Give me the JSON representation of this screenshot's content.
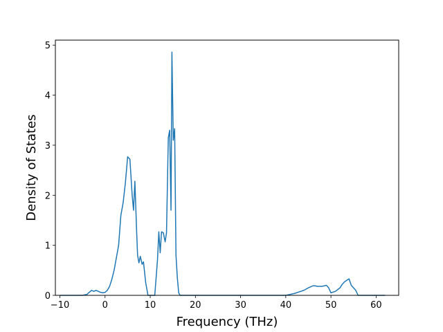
{
  "chart_data": {
    "type": "line",
    "title": "",
    "xlabel": "Frequency (THz)",
    "ylabel": "Density of States",
    "xlim": [
      -11,
      65
    ],
    "ylim": [
      0,
      5.1
    ],
    "xticks": [
      -10,
      0,
      10,
      20,
      30,
      40,
      50,
      60
    ],
    "yticks": [
      0,
      1,
      2,
      3,
      4,
      5
    ],
    "grid": false,
    "legend": "none",
    "line_color": "#1f77b4",
    "series": [
      {
        "x": [
          -10,
          -5,
          -4,
          -3,
          -2.5,
          -2,
          -1.5,
          -1,
          -0.5,
          0,
          0.5,
          1,
          1.5,
          2,
          2.5,
          3,
          3.5,
          4,
          4.5,
          5,
          5.5,
          6,
          6.3,
          6.6,
          7,
          7.2,
          7.5,
          7.8,
          8.2,
          8.5,
          9,
          9.5,
          10,
          10.5,
          11,
          11.3,
          11.6,
          11.9,
          12.2,
          12.5,
          12.9,
          13.3,
          13.6,
          14,
          14.3,
          14.6,
          14.8,
          15.1,
          15.4,
          15.7,
          16,
          16.3,
          16.6,
          17,
          20,
          30,
          40,
          41,
          42,
          43,
          44,
          45,
          45.5,
          46,
          46.5,
          47,
          47.5,
          48,
          48.5,
          49,
          49.5,
          50,
          51,
          52,
          52.5,
          53,
          53.5,
          54,
          54.5,
          55,
          55.5,
          56,
          60,
          62
        ],
        "y": [
          0,
          0,
          0.02,
          0.1,
          0.08,
          0.1,
          0.08,
          0.06,
          0.05,
          0.06,
          0.1,
          0.18,
          0.32,
          0.5,
          0.75,
          1.0,
          1.6,
          1.85,
          2.25,
          2.77,
          2.72,
          2.0,
          1.7,
          2.28,
          1.25,
          0.8,
          0.65,
          0.78,
          0.62,
          0.67,
          0.25,
          0,
          0,
          0,
          0,
          0.35,
          0.7,
          1.27,
          0.85,
          1.27,
          1.25,
          1.07,
          1.25,
          3.15,
          3.3,
          1.7,
          4.86,
          3.1,
          3.33,
          0.8,
          0.35,
          0.05,
          0,
          0,
          0,
          0,
          0,
          0.02,
          0.04,
          0.07,
          0.1,
          0.15,
          0.17,
          0.19,
          0.19,
          0.18,
          0.18,
          0.18,
          0.19,
          0.2,
          0.15,
          0.05,
          0.08,
          0.15,
          0.22,
          0.27,
          0.3,
          0.33,
          0.2,
          0.15,
          0.1,
          0,
          0,
          0
        ]
      }
    ]
  }
}
